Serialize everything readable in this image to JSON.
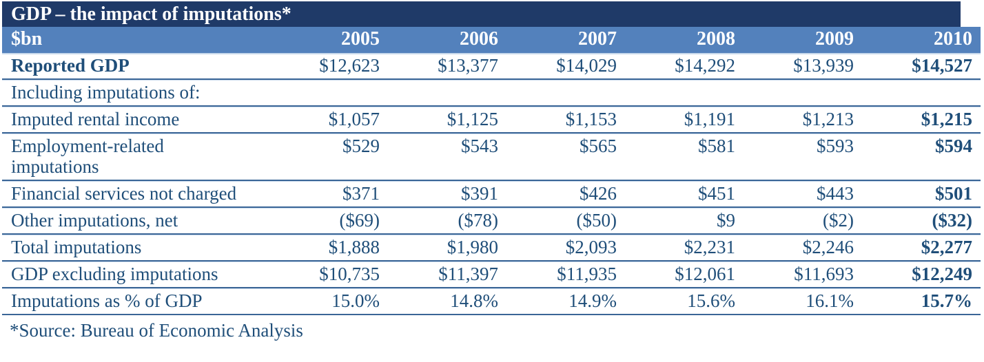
{
  "title": "GDP – the impact of imputations*",
  "footnote": "*Source: Bureau of Economic Analysis",
  "colors": {
    "title_bg": "#1F3A68",
    "header_bg": "#5381BC",
    "body_text": "#1F4E79",
    "row_border": "#3A6596",
    "header_text": "#FFFFFF"
  },
  "chart_data": {
    "type": "table",
    "title": "GDP – the impact of imputations*",
    "unit_label": "$bn",
    "columns": [
      "$bn",
      "2005",
      "2006",
      "2007",
      "2008",
      "2009",
      "2010"
    ],
    "rows": [
      {
        "label": "Reported GDP",
        "bold": true,
        "values": [
          "$12,623",
          "$13,377",
          "$14,029",
          "$14,292",
          "$13,939",
          "$14,527"
        ]
      },
      {
        "label": "Including imputations of:",
        "values": [
          "",
          "",
          "",
          "",
          "",
          ""
        ]
      },
      {
        "label": "Imputed rental income",
        "values": [
          "$1,057",
          "$1,125",
          "$1,153",
          "$1,191",
          "$1,213",
          "$1,215"
        ]
      },
      {
        "label": "Employment-related imputations",
        "values": [
          "$529",
          "$543",
          "$565",
          "$581",
          "$593",
          "$594"
        ]
      },
      {
        "label": "Financial services not charged",
        "values": [
          "$371",
          "$391",
          "$426",
          "$451",
          "$443",
          "$501"
        ]
      },
      {
        "label": "Other imputations, net",
        "values": [
          "($69)",
          "($78)",
          "($50)",
          "$9",
          "($2)",
          "($32)"
        ]
      },
      {
        "label": "Total imputations",
        "values": [
          "$1,888",
          "$1,980",
          "$2,093",
          "$2,231",
          "$2,246",
          "$2,277"
        ]
      },
      {
        "label": "GDP excluding imputations",
        "values": [
          "$10,735",
          "$11,397",
          "$11,935",
          "$12,061",
          "$11,693",
          "$12,249"
        ]
      },
      {
        "label": "Imputations as % of GDP",
        "values": [
          "15.0%",
          "14.8%",
          "14.9%",
          "15.6%",
          "16.1%",
          "15.7%"
        ]
      }
    ],
    "layout_hints": {
      "bold_last_column": true,
      "footnote": "*Source: Bureau of Economic Analysis"
    }
  }
}
